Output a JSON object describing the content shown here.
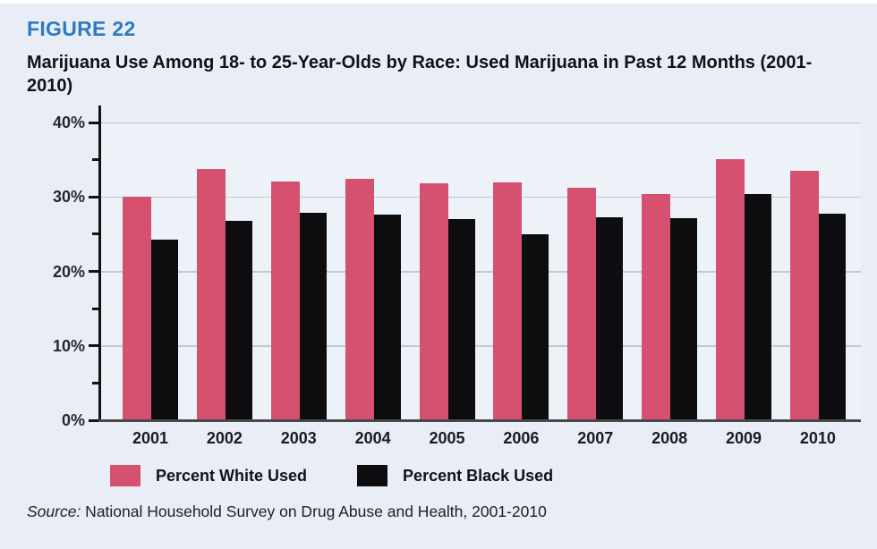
{
  "figure_label": "FIGURE 22",
  "title": "Marijuana Use Among 18- to 25-Year-Olds by Race: Used Marijuana in Past 12 Months (2001-2010)",
  "source": {
    "prefix": "Source:",
    "text": " National Household Survey on Drug Abuse and Health, 2001-2010"
  },
  "colors": {
    "background": "#e9eef6",
    "figure_label": "#2d7ac0",
    "white_series": "#d5516f",
    "black_series": "#0d0d0f",
    "gridline": "#c3c9d1",
    "axis": "#131315",
    "baseline": "#48494c"
  },
  "chart_data": {
    "type": "bar",
    "title": "Marijuana Use Among 18- to 25-Year-Olds by Race: Used Marijuana in Past 12 Months (2001-2010)",
    "categories": [
      "2001",
      "2002",
      "2003",
      "2004",
      "2005",
      "2006",
      "2007",
      "2008",
      "2009",
      "2010"
    ],
    "series": [
      {
        "name": "Percent White Used",
        "color": "#d5516f",
        "values": [
          30.0,
          33.7,
          32.1,
          32.4,
          31.8,
          32.0,
          31.2,
          30.4,
          35.1,
          33.5
        ]
      },
      {
        "name": "Percent Black Used",
        "color": "#0d0d0f",
        "values": [
          24.3,
          26.8,
          27.9,
          27.6,
          27.0,
          25.0,
          27.3,
          27.1,
          30.4,
          27.8
        ]
      }
    ],
    "xlabel": "",
    "ylabel": "",
    "ylim": [
      0,
      40
    ],
    "yticks": [
      {
        "value": 0,
        "label": "0%"
      },
      {
        "value": 10,
        "label": "10%"
      },
      {
        "value": 20,
        "label": "20%"
      },
      {
        "value": 30,
        "label": "30%"
      },
      {
        "value": 40,
        "label": "40%"
      }
    ],
    "minor_yticks": [
      5,
      15,
      25,
      35
    ],
    "grid": true,
    "legend_position": "bottom"
  }
}
